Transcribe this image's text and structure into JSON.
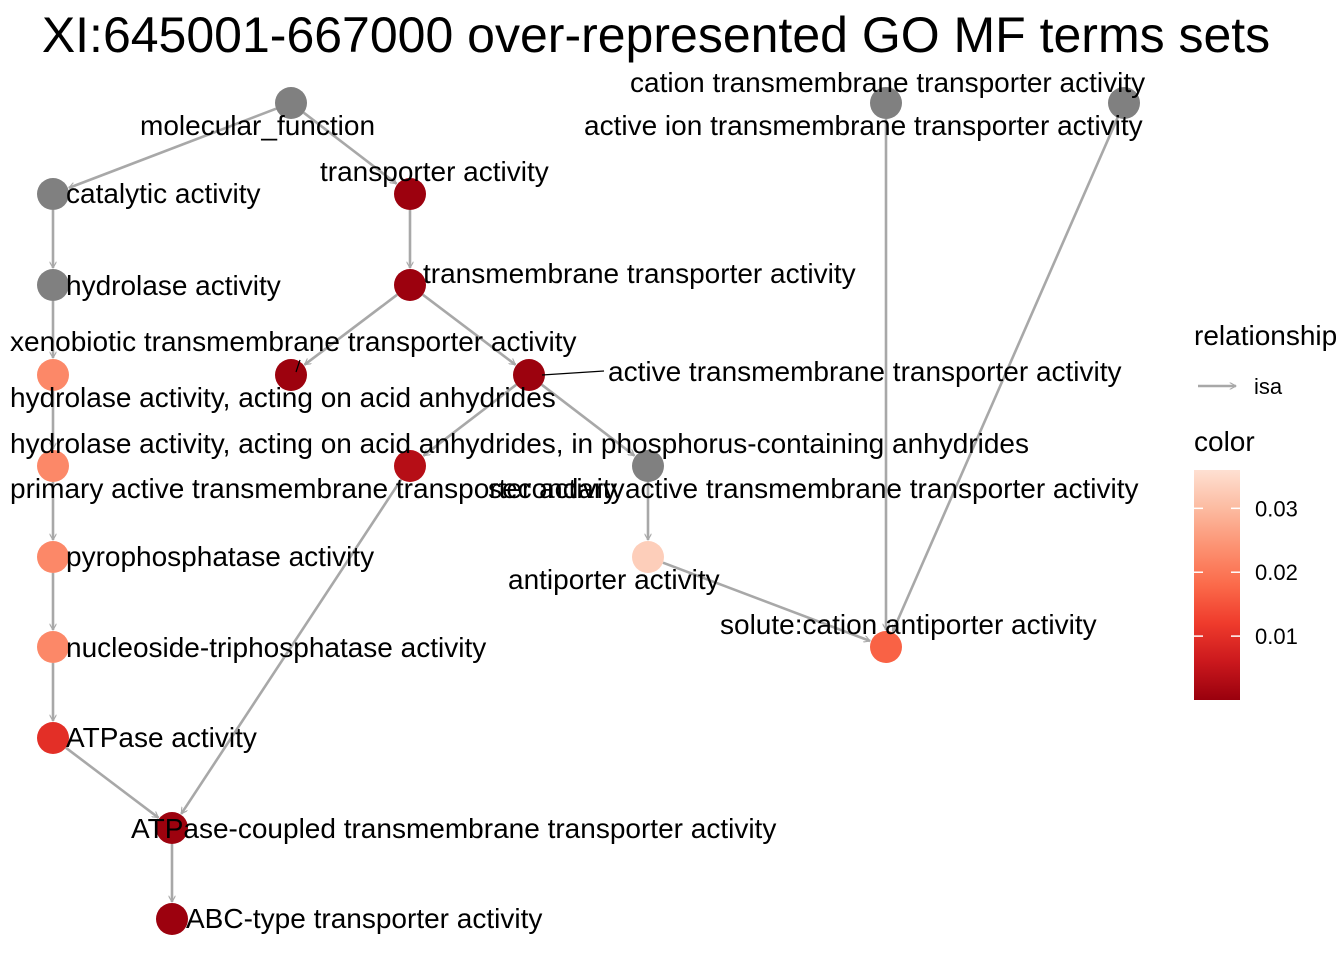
{
  "title": "XI:645001-667000 over-represented GO MF terms sets",
  "colors": {
    "edge": "#a8a8a8",
    "na_node": "#808080"
  },
  "nodes": [
    {
      "id": "molecular_function",
      "label": "molecular_function",
      "value": null
    },
    {
      "id": "catalytic_activity",
      "label": "catalytic activity",
      "value": null
    },
    {
      "id": "transporter_activity",
      "label": "transporter activity",
      "value": 0.0003
    },
    {
      "id": "hydrolase_activity",
      "label": "hydrolase activity",
      "value": null
    },
    {
      "id": "transmembrane_transporter_activity",
      "label": "transmembrane transporter activity",
      "value": 0.0003
    },
    {
      "id": "xenobiotic_transmembrane_transporter_activity",
      "label": "xenobiotic transmembrane transporter activity",
      "value": 0.0005
    },
    {
      "id": "active_transmembrane_transporter_activity",
      "label": "active transmembrane transporter activity",
      "value": 0.0004
    },
    {
      "id": "hydrolase_acid_anhydrides",
      "label": "hydrolase activity, acting on acid anhydrides",
      "value": 0.0225
    },
    {
      "id": "hydrolase_phosphorus_anhydrides",
      "label": "hydrolase activity, acting on acid anhydrides, in phosphorus-containing anhydrides",
      "value": 0.0225
    },
    {
      "id": "primary_active_transmembrane_transporter_activity",
      "label": "primary active transmembrane transporter activity",
      "value": 0.0035
    },
    {
      "id": "secondary_active_transmembrane_transporter_activity",
      "label": "secondary active transmembrane transporter activity",
      "value": null
    },
    {
      "id": "cation_transmembrane_transporter_activity",
      "label": "cation transmembrane transporter activity",
      "value": null
    },
    {
      "id": "active_ion_transmembrane_transporter_activity",
      "label": "active ion transmembrane transporter activity",
      "value": null
    },
    {
      "id": "pyrophosphatase_activity",
      "label": "pyrophosphatase activity",
      "value": 0.0225
    },
    {
      "id": "antiporter_activity",
      "label": "antiporter activity",
      "value": 0.033
    },
    {
      "id": "solute_cation_antiporter_activity",
      "label": "solute:cation antiporter activity",
      "value": 0.017
    },
    {
      "id": "nucleoside_triphosphatase_activity",
      "label": "nucleoside-triphosphatase activity",
      "value": 0.0225
    },
    {
      "id": "atpase_activity",
      "label": "ATPase activity",
      "value": 0.01
    },
    {
      "id": "atpase_coupled_transmembrane_transporter_activity",
      "label": "ATPase-coupled transmembrane transporter activity",
      "value": 0.0005
    },
    {
      "id": "abc_type_transporter_activity",
      "label": "ABC-type transporter activity",
      "value": 0.0003
    }
  ],
  "edges": [
    {
      "from": "molecular_function",
      "to": "catalytic_activity",
      "type": "isa"
    },
    {
      "from": "molecular_function",
      "to": "transporter_activity",
      "type": "isa"
    },
    {
      "from": "catalytic_activity",
      "to": "hydrolase_activity",
      "type": "isa"
    },
    {
      "from": "transporter_activity",
      "to": "transmembrane_transporter_activity",
      "type": "isa"
    },
    {
      "from": "hydrolase_activity",
      "to": "hydrolase_acid_anhydrides",
      "type": "isa"
    },
    {
      "from": "transmembrane_transporter_activity",
      "to": "xenobiotic_transmembrane_transporter_activity",
      "type": "isa"
    },
    {
      "from": "transmembrane_transporter_activity",
      "to": "active_transmembrane_transporter_activity",
      "type": "isa"
    },
    {
      "from": "hydrolase_acid_anhydrides",
      "to": "hydrolase_phosphorus_anhydrides",
      "type": "isa"
    },
    {
      "from": "active_transmembrane_transporter_activity",
      "to": "primary_active_transmembrane_transporter_activity",
      "type": "isa"
    },
    {
      "from": "active_transmembrane_transporter_activity",
      "to": "secondary_active_transmembrane_transporter_activity",
      "type": "isa"
    },
    {
      "from": "hydrolase_phosphorus_anhydrides",
      "to": "pyrophosphatase_activity",
      "type": "isa"
    },
    {
      "from": "secondary_active_transmembrane_transporter_activity",
      "to": "antiporter_activity",
      "type": "isa"
    },
    {
      "from": "pyrophosphatase_activity",
      "to": "nucleoside_triphosphatase_activity",
      "type": "isa"
    },
    {
      "from": "antiporter_activity",
      "to": "solute_cation_antiporter_activity",
      "type": "isa"
    },
    {
      "from": "cation_transmembrane_transporter_activity",
      "to": "solute_cation_antiporter_activity",
      "type": "isa"
    },
    {
      "from": "active_ion_transmembrane_transporter_activity",
      "to": "solute_cation_antiporter_activity",
      "type": "isa"
    },
    {
      "from": "nucleoside_triphosphatase_activity",
      "to": "atpase_activity",
      "type": "isa"
    },
    {
      "from": "atpase_activity",
      "to": "atpase_coupled_transmembrane_transporter_activity",
      "type": "isa"
    },
    {
      "from": "primary_active_transmembrane_transporter_activity",
      "to": "atpase_coupled_transmembrane_transporter_activity",
      "type": "isa"
    },
    {
      "from": "atpase_coupled_transmembrane_transporter_activity",
      "to": "abc_type_transporter_activity",
      "type": "isa"
    }
  ],
  "legend": {
    "relationship_title": "relationship",
    "relationship_items": [
      {
        "label": "isa"
      }
    ],
    "color_title": "color",
    "color_range": [
      0,
      0.036
    ],
    "color_ticks": [
      {
        "value": 0.03,
        "label": "0.03"
      },
      {
        "value": 0.02,
        "label": "0.02"
      },
      {
        "value": 0.01,
        "label": "0.01"
      }
    ],
    "color_scale": [
      "#99000d",
      "#cb181d",
      "#ef3b2c",
      "#fb6a4a",
      "#fc9272",
      "#fcbba1",
      "#fee0d2"
    ]
  }
}
